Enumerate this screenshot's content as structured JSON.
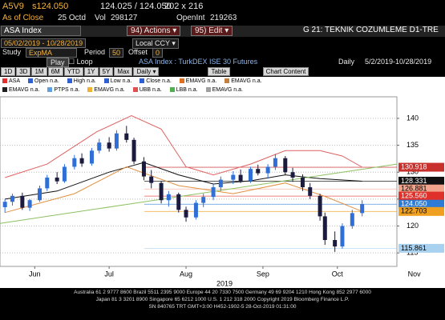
{
  "header": {
    "ticker": "A5V9",
    "last": "s124.050",
    "bid_ask": "124.025 / 124.050",
    "size": "202 x 216",
    "as_of": "As of Close",
    "close_date": "25 Octd",
    "vol_label": "Vol",
    "vol": "298127",
    "oi_label": "OpenInt",
    "oi": "219263"
  },
  "toolbar": {
    "security": "ASA Index",
    "actions": "94) Actions ▾",
    "edit": "95) Edit ▾",
    "page_title": "G 21: TEKNIK COZUMLEME D1-TRE",
    "range": "05/02/2019 - 10/28/2019",
    "currency": "Local CCY ▾",
    "study_label": "Study",
    "study": "ExpMA",
    "period_label": "Period",
    "period": "50",
    "offset_label": "Offset",
    "offset": "0",
    "play": "Play",
    "loop": "Loop",
    "description": "ASA Index : TurkDEX ISE 30 Futures",
    "frequency": "Daily",
    "date_span": "5/2/2019-10/28/2019",
    "tabs": [
      "1D",
      "3D",
      "1M",
      "6M",
      "YTD",
      "1Y",
      "5Y",
      "Max"
    ],
    "daily": "Daily ▾",
    "table": "Table",
    "chart_content": "Chart Content"
  },
  "legend": [
    [
      {
        "label": "ASA",
        "color": "#e03030"
      },
      {
        "label": "Open n.a.",
        "color": "#3060d0"
      },
      {
        "label": "High n.a.",
        "color": "#3060d0"
      },
      {
        "label": "Low n.a.",
        "color": "#3060d0"
      },
      {
        "label": "Close n.a.",
        "color": "#3060d0"
      },
      {
        "label": "EMAVG n.a.",
        "color": "#e07020"
      },
      {
        "label": "EMAVG n.a.",
        "color": "#c08040"
      }
    ],
    [
      {
        "label": "EMAVG n.a.",
        "color": "#202020"
      },
      {
        "label": "PTPS n.a.",
        "color": "#60a0e0"
      },
      {
        "label": "EMAVG n.a.",
        "color": "#f0b030"
      },
      {
        "label": "UBB n.a.",
        "color": "#e05050"
      },
      {
        "label": "LBB n.a.",
        "color": "#50b050"
      },
      {
        "label": "EMAVG n.a.",
        "color": "#a0a0a0"
      }
    ]
  ],
  "chart_data": {
    "type": "candlestick",
    "x": [
      "2019-06-03",
      "2019-06-06",
      "2019-06-10",
      "2019-06-13",
      "2019-06-17",
      "2019-06-20",
      "2019-06-24",
      "2019-06-27",
      "2019-07-01",
      "2019-07-04",
      "2019-07-08",
      "2019-07-11",
      "2019-07-15",
      "2019-07-18",
      "2019-07-22",
      "2019-07-25",
      "2019-07-29",
      "2019-08-01",
      "2019-08-05",
      "2019-08-08",
      "2019-08-12",
      "2019-08-15",
      "2019-08-19",
      "2019-08-22",
      "2019-08-26",
      "2019-08-29",
      "2019-09-03",
      "2019-09-06",
      "2019-09-10",
      "2019-09-13",
      "2019-09-17",
      "2019-09-20",
      "2019-09-24",
      "2019-09-27",
      "2019-10-01",
      "2019-10-04",
      "2019-10-08",
      "2019-10-10",
      "2019-10-14",
      "2019-10-17",
      "2019-10-21",
      "2019-10-25"
    ],
    "open": [
      123.5,
      124.5,
      125.6,
      123.4,
      124.8,
      127.0,
      129.0,
      128.3,
      131.0,
      132.6,
      131.6,
      134.0,
      135.5,
      134.4,
      137.2,
      136.0,
      132.0,
      129.2,
      128.0,
      124.8,
      125.9,
      123.0,
      121.6,
      124.3,
      125.4,
      127.2,
      128.6,
      129.5,
      128.4,
      130.6,
      129.8,
      131.0,
      132.6,
      130.0,
      129.0,
      127.2,
      125.6,
      121.8,
      117.4,
      116.2,
      120.0,
      122.4
    ],
    "high": [
      125.0,
      126.0,
      126.2,
      125.0,
      127.5,
      129.5,
      130.0,
      131.5,
      133.2,
      133.5,
      134.5,
      136.2,
      136.5,
      137.8,
      138.6,
      136.4,
      132.8,
      130.4,
      128.4,
      126.5,
      126.2,
      123.6,
      124.8,
      126.0,
      127.8,
      129.2,
      130.2,
      130.5,
      131.0,
      131.4,
      131.5,
      133.4,
      133.0,
      130.8,
      129.6,
      128.0,
      126.0,
      122.5,
      119.0,
      120.5,
      123.0,
      124.8
    ],
    "low": [
      122.5,
      123.8,
      123.0,
      122.8,
      124.5,
      126.5,
      127.8,
      128.0,
      130.5,
      131.0,
      131.2,
      133.5,
      133.8,
      134.0,
      135.5,
      131.5,
      128.5,
      127.0,
      124.2,
      123.6,
      122.5,
      120.8,
      121.2,
      123.5,
      124.8,
      126.5,
      127.8,
      128.0,
      128.0,
      129.4,
      128.8,
      130.4,
      129.5,
      128.2,
      126.5,
      125.0,
      121.0,
      116.5,
      115.2,
      115.8,
      119.5,
      121.8
    ],
    "close": [
      124.5,
      125.6,
      123.4,
      124.8,
      127.0,
      129.0,
      128.3,
      131.0,
      132.6,
      131.6,
      134.0,
      135.5,
      134.4,
      137.2,
      136.0,
      132.0,
      129.2,
      128.0,
      124.8,
      125.9,
      123.0,
      121.6,
      124.3,
      125.4,
      127.2,
      128.6,
      129.5,
      128.4,
      130.6,
      129.8,
      131.0,
      132.6,
      130.0,
      129.0,
      127.2,
      125.6,
      121.8,
      117.4,
      116.2,
      120.0,
      122.4,
      124.05
    ],
    "up_color": "#2f6fd6",
    "down_color": "#1b1b40",
    "overlays": [
      {
        "color": "#111111",
        "x": [
          "2019-06-03",
          "2019-06-24",
          "2019-07-15",
          "2019-07-29",
          "2019-08-12",
          "2019-08-26",
          "2019-09-10",
          "2019-09-24",
          "2019-10-08",
          "2019-10-25"
        ],
        "values": [
          125,
          126.5,
          130,
          131.8,
          129.5,
          127.8,
          128.4,
          129.5,
          128.8,
          128.331
        ]
      },
      {
        "color": "#e06060",
        "x": [
          "2019-06-03",
          "2019-06-20",
          "2019-07-10",
          "2019-07-24",
          "2019-08-05",
          "2019-08-15",
          "2019-08-26",
          "2019-09-10",
          "2019-09-24",
          "2019-10-08",
          "2019-10-17",
          "2019-10-25"
        ],
        "values": [
          129,
          131.5,
          137.5,
          140.5,
          138,
          131,
          129.5,
          131.5,
          134,
          134,
          133,
          130.918
        ]
      },
      {
        "color": "#e09040",
        "x": [
          "2019-06-03",
          "2019-07-01",
          "2019-07-22",
          "2019-08-12",
          "2019-09-03",
          "2019-09-24",
          "2019-10-10",
          "2019-10-25"
        ],
        "values": [
          122.5,
          126,
          131,
          127.5,
          126,
          128,
          125.5,
          122.703
        ]
      },
      {
        "color": "#8cc060",
        "x": [
          "2019-06-01",
          "2019-11-08"
        ],
        "values": [
          120.5,
          131.5
        ]
      }
    ],
    "levels": [
      {
        "value": 130.918,
        "color": "#c8302c",
        "text_color": "#ffffff"
      },
      {
        "value": 128.331,
        "color": "#111111",
        "text_color": "#ffffff"
      },
      {
        "value": 126.881,
        "color": "#f3a48c",
        "text_color": "#000000"
      },
      {
        "value": 125.56,
        "label": "125.560",
        "color": "#e0302a",
        "text_color": "#ffffff"
      },
      {
        "value": 124.05,
        "label": "124.050",
        "color": "#2e7bd6",
        "text_color": "#ffffff"
      },
      {
        "value": 122.703,
        "color": "#f0a020",
        "text_color": "#000000"
      },
      {
        "value": 115.861,
        "color": "#a9d2f0",
        "text_color": "#000000"
      }
    ],
    "ylim": [
      112.5,
      144
    ],
    "yticks": [
      115,
      120,
      125,
      130,
      135,
      140
    ],
    "xlim": [
      "2019-06-01",
      "2019-11-08"
    ],
    "xticks": [
      {
        "value": "2019-06-15",
        "label": "Jun"
      },
      {
        "value": "2019-07-15",
        "label": "Jul"
      },
      {
        "value": "2019-08-15",
        "label": "Aug"
      },
      {
        "value": "2019-09-15",
        "label": "Sep"
      },
      {
        "value": "2019-10-15",
        "label": "Oct"
      },
      {
        "value": "2019-11-15",
        "label": "Nov"
      }
    ],
    "xlabel": "2019",
    "grid": true
  },
  "footer": [
    "Australia 61 2 9777 8600 Brazil 5511 2395 9000 Europe 44 20 7330 7500 Germany 49 69 9204 1210 Hong Kong 852 2977 6000",
    "Japan 81 3 3201 8900       Singapore 65 6212 1000       U.S. 1 212 318 2000            Copyright 2019 Bloomberg Finance L.P.",
    "SN 840765 TRT  GMT+3:00 H452-1902-5 28-Oct-2019 01:31:00"
  ]
}
